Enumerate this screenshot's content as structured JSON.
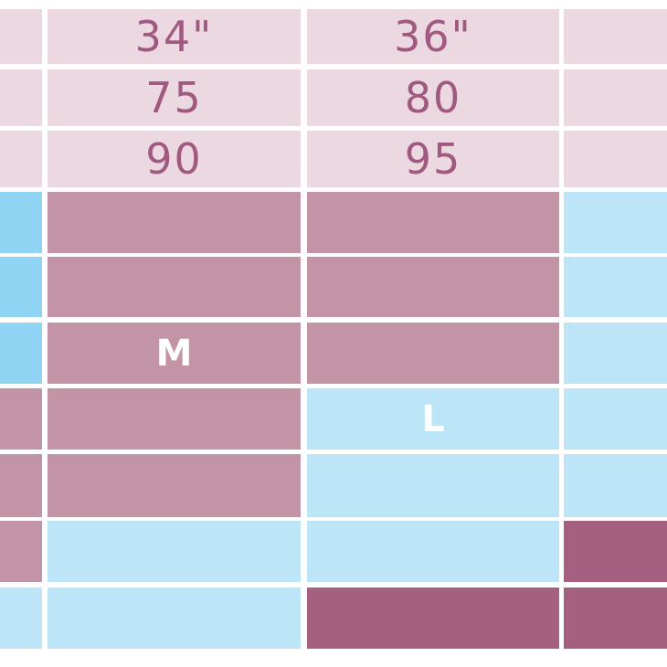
{
  "table": {
    "rows": [
      [
        "34\"",
        "36\""
      ],
      [
        "75",
        "80"
      ],
      [
        "90",
        "95"
      ]
    ],
    "sizes": [
      "M",
      "L"
    ]
  }
}
